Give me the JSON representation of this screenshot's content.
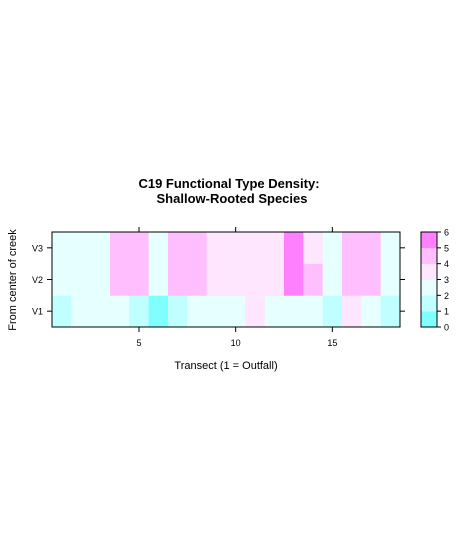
{
  "chart_data": {
    "type": "heatmap",
    "title": [
      "C19 Functional Type Density:",
      "Shallow-Rooted Species"
    ],
    "xlabel": "Transect (1 = Outfall)",
    "ylabel": "From center of creek",
    "x_range": [
      0.5,
      18.5
    ],
    "x_ticks": [
      5,
      10,
      15
    ],
    "y_categories": [
      "V1",
      "V2",
      "V3"
    ],
    "colorkey": {
      "breaks": [
        0,
        1,
        2,
        3,
        4,
        5,
        6
      ],
      "labels": [
        "0",
        "1",
        "2",
        "3",
        "4",
        "5",
        "6"
      ],
      "colors": [
        "#80FFFF",
        "#BFFFFF",
        "#E6FFFF",
        "#FFE6FF",
        "#FFBFFF",
        "#FF80FF"
      ]
    },
    "values": {
      "V3": [
        2.5,
        2.5,
        2.5,
        4.5,
        4.5,
        2.5,
        4.5,
        4.5,
        3.5,
        3.5,
        3.5,
        3.5,
        5.5,
        3.5,
        2.5,
        4.5,
        4.5,
        2.5
      ],
      "V2": [
        2.5,
        2.5,
        2.5,
        4.5,
        4.5,
        2.5,
        4.5,
        4.5,
        3.5,
        3.5,
        3.5,
        3.5,
        5.5,
        4.5,
        2.5,
        4.5,
        4.5,
        2.5
      ],
      "V1": [
        1.5,
        2.5,
        2.5,
        2.5,
        1.5,
        0.5,
        1.5,
        2.5,
        2.5,
        2.5,
        3.5,
        2.5,
        2.5,
        2.5,
        1.5,
        3.5,
        2.5,
        1.5
      ]
    }
  }
}
